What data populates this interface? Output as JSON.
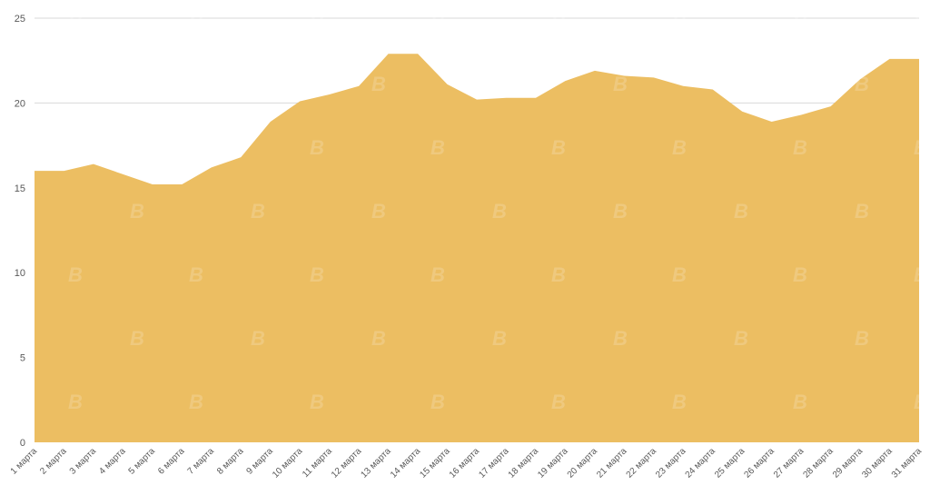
{
  "chart_data": {
    "type": "area",
    "categories": [
      "1 марта",
      "2 марта",
      "3 марта",
      "4 марта",
      "5 марта",
      "6 марта",
      "7 марта",
      "8 марта",
      "9 марта",
      "10 марта",
      "11 марта",
      "12 марта",
      "13 марта",
      "14 марта",
      "15 марта",
      "16 марта",
      "17 марта",
      "18 марта",
      "19 марта",
      "20 марта",
      "21 марта",
      "22 марта",
      "23 марта",
      "24 марта",
      "25 марта",
      "26 марта",
      "27 марта",
      "28 марта",
      "29 марта",
      "30 марта",
      "31 марта"
    ],
    "values": [
      16.0,
      16.0,
      16.4,
      15.8,
      15.2,
      15.2,
      16.2,
      16.8,
      18.9,
      20.1,
      20.5,
      21.0,
      22.9,
      22.9,
      21.1,
      20.2,
      20.3,
      20.3,
      21.3,
      21.9,
      21.6,
      21.5,
      21.0,
      20.8,
      19.5,
      18.9,
      19.3,
      19.8,
      21.4,
      22.6,
      22.6
    ],
    "yticks": [
      0,
      5,
      10,
      15,
      20,
      25
    ],
    "ylim": [
      0,
      25
    ],
    "grid": true,
    "fill_color": "#ECBE62",
    "grid_color": "#d9d9d9"
  }
}
